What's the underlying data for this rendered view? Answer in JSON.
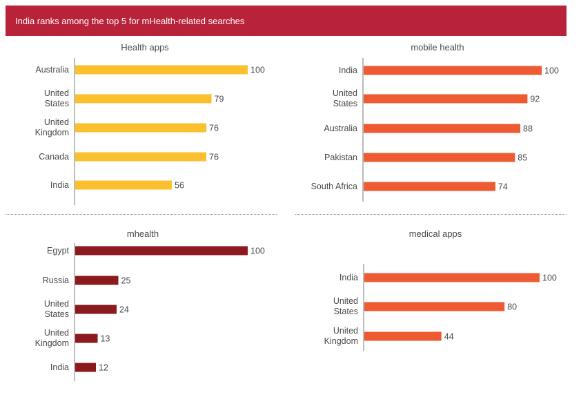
{
  "banner": {
    "title": "India ranks among the top 5 for mHealth-related searches"
  },
  "colors": {
    "banner": "#b8233a",
    "health_apps": "#fbc02d",
    "mobile_health": "#ee5a32",
    "mhealth": "#8b1a1f",
    "medical_apps": "#ee5a32"
  },
  "chart_data": [
    {
      "type": "bar",
      "orientation": "horizontal",
      "title": "Health apps",
      "categories": [
        "Australia",
        "United States",
        "United Kingdom",
        "Canada",
        "India"
      ],
      "values": [
        100,
        79,
        76,
        76,
        56
      ],
      "xlim": [
        0,
        100
      ],
      "color": "#fbc02d"
    },
    {
      "type": "bar",
      "orientation": "horizontal",
      "title": "mobile health",
      "categories": [
        "India",
        "United States",
        "Australia",
        "Pakistan",
        "South Africa"
      ],
      "values": [
        100,
        92,
        88,
        85,
        74
      ],
      "xlim": [
        0,
        100
      ],
      "color": "#ee5a32"
    },
    {
      "type": "bar",
      "orientation": "horizontal",
      "title": "mhealth",
      "categories": [
        "Egypt",
        "Russia",
        "United States",
        "United Kingdom",
        "India"
      ],
      "values": [
        100,
        25,
        24,
        13,
        12
      ],
      "xlim": [
        0,
        100
      ],
      "color": "#8b1a1f"
    },
    {
      "type": "bar",
      "orientation": "horizontal",
      "title": "medical apps",
      "categories": [
        "India",
        "United States",
        "United Kingdom"
      ],
      "values": [
        100,
        80,
        44
      ],
      "xlim": [
        0,
        100
      ],
      "color": "#ee5a32"
    }
  ]
}
